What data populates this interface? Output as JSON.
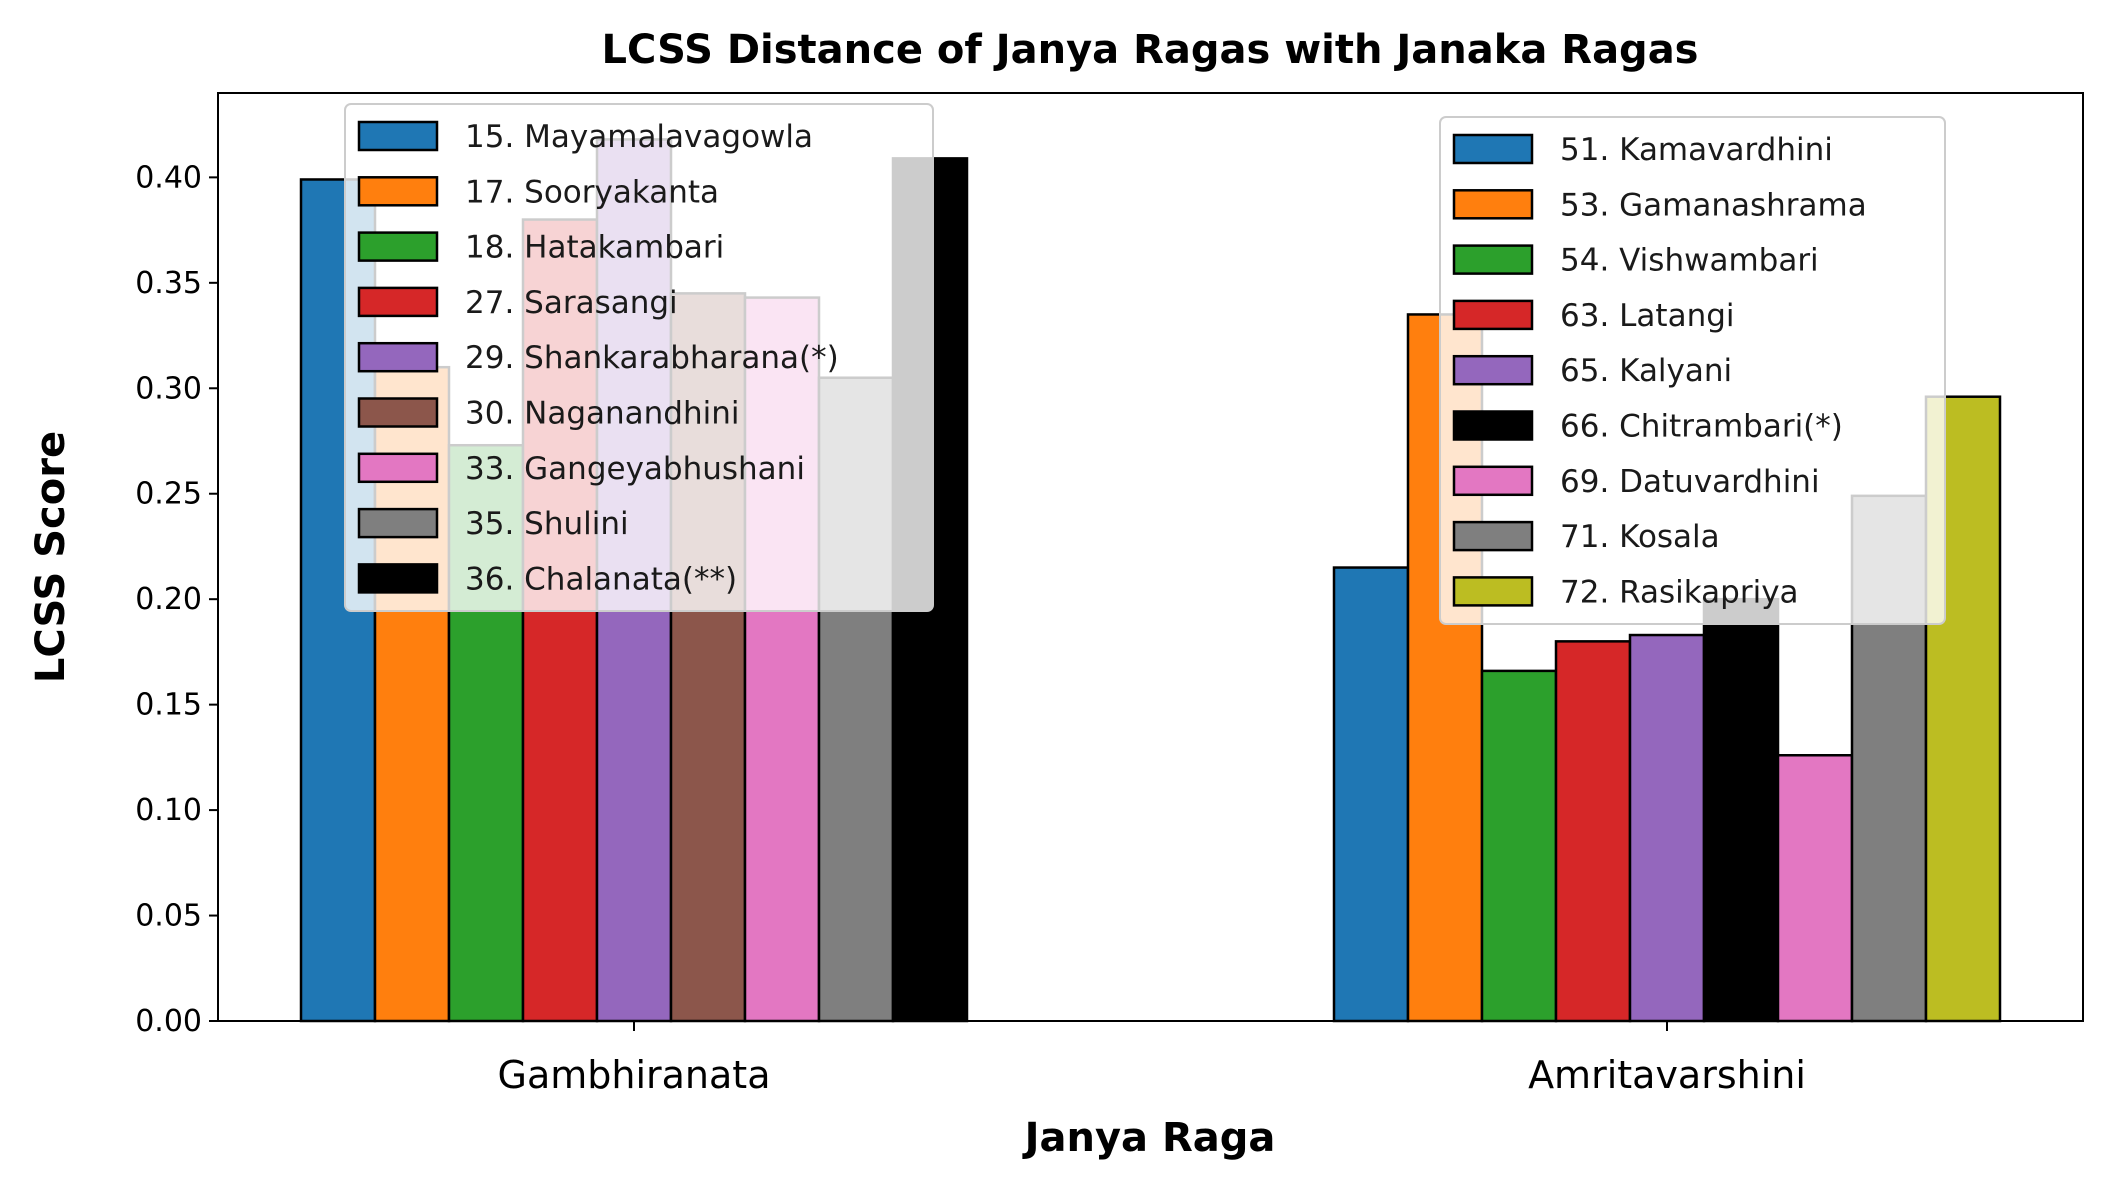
{
  "chart_data": {
    "type": "bar",
    "title": "LCSS Distance of Janya Ragas with Janaka Ragas",
    "xlabel": "Janya Raga",
    "ylabel": "LCSS Score",
    "ylim": [
      0,
      0.44
    ],
    "yticks": [
      "0.00",
      "0.05",
      "0.10",
      "0.15",
      "0.20",
      "0.25",
      "0.30",
      "0.35",
      "0.40"
    ],
    "grid": false,
    "groups": [
      {
        "category": "Gambhiranata",
        "legend_position": "upper-left",
        "series": [
          {
            "name": "15. Mayamalavagowla",
            "value": 0.399,
            "color": "#1f77b4"
          },
          {
            "name": "17. Sooryakanta",
            "value": 0.31,
            "color": "#ff7f0e"
          },
          {
            "name": "18. Hatakambari",
            "value": 0.273,
            "color": "#2ca02c"
          },
          {
            "name": "27. Sarasangi",
            "value": 0.38,
            "color": "#d62728"
          },
          {
            "name": "29. Shankarabharana(*)",
            "value": 0.418,
            "color": "#9467bd"
          },
          {
            "name": "30. Naganandhini",
            "value": 0.345,
            "color": "#8c564b"
          },
          {
            "name": "33. Gangeyabhushani",
            "value": 0.343,
            "color": "#e377c2"
          },
          {
            "name": "35. Shulini",
            "value": 0.305,
            "color": "#7f7f7f"
          },
          {
            "name": "36. Chalanata(**)",
            "value": 0.409,
            "color": "#000000"
          }
        ]
      },
      {
        "category": "Amritavarshini",
        "legend_position": "upper-right",
        "series": [
          {
            "name": "51. Kamavardhini",
            "value": 0.215,
            "color": "#1f77b4"
          },
          {
            "name": "53. Gamanashrama",
            "value": 0.335,
            "color": "#ff7f0e"
          },
          {
            "name": "54. Vishwambari",
            "value": 0.166,
            "color": "#2ca02c"
          },
          {
            "name": "63. Latangi",
            "value": 0.18,
            "color": "#d62728"
          },
          {
            "name": "65. Kalyani",
            "value": 0.183,
            "color": "#9467bd"
          },
          {
            "name": "66. Chitrambari(*)",
            "value": 0.2,
            "color": "#000000"
          },
          {
            "name": "69. Datuvardhini",
            "value": 0.126,
            "color": "#e377c2"
          },
          {
            "name": "71. Kosala",
            "value": 0.249,
            "color": "#7f7f7f"
          },
          {
            "name": "72. Rasikapriya",
            "value": 0.296,
            "color": "#bcbd22"
          }
        ]
      }
    ]
  }
}
